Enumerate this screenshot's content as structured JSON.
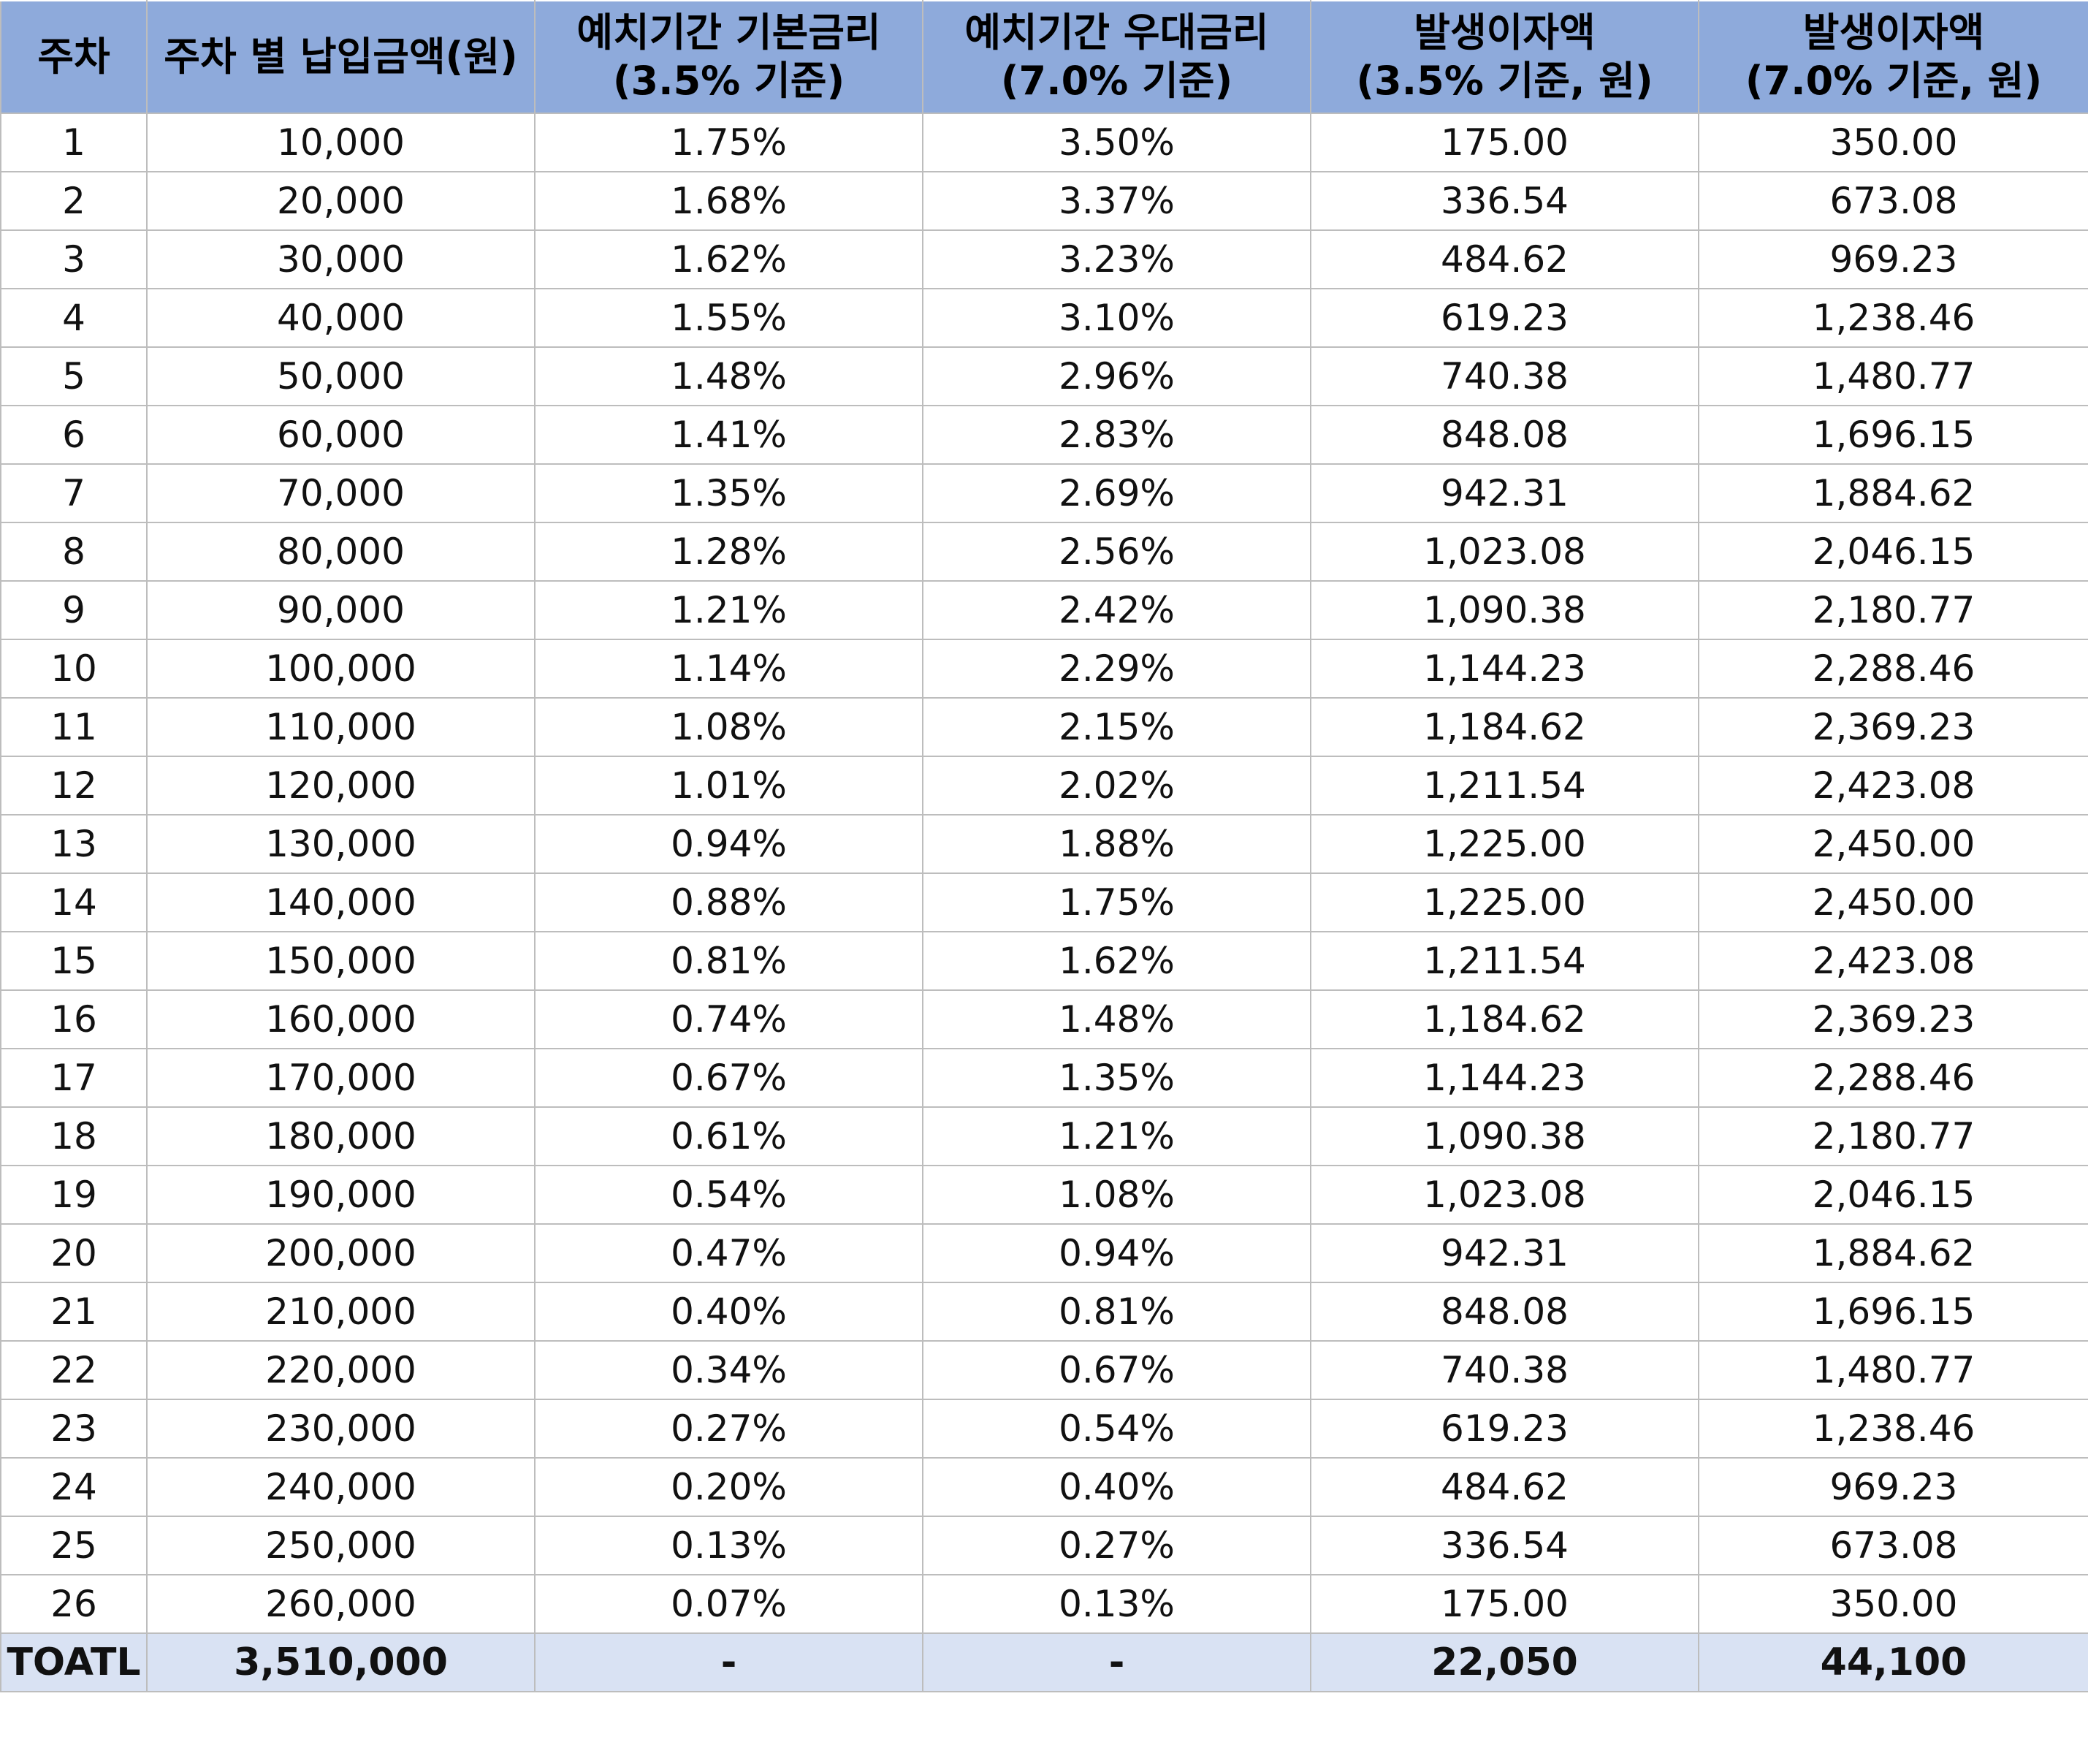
{
  "headers": {
    "week": "주차",
    "deposit": "주차 별 납입금액(원)",
    "base_rate": [
      "예치기간 기본금리",
      "(3.5% 기준)"
    ],
    "pref_rate": [
      "예치기간 우대금리",
      "(7.0% 기준)"
    ],
    "interest_base": [
      "발생이자액",
      "(3.5% 기준, 원)"
    ],
    "interest_pref": [
      "발생이자액",
      "(7.0% 기준, 원)"
    ]
  },
  "rows": [
    [
      "1",
      "10,000",
      "1.75%",
      "3.50%",
      "175.00",
      "350.00"
    ],
    [
      "2",
      "20,000",
      "1.68%",
      "3.37%",
      "336.54",
      "673.08"
    ],
    [
      "3",
      "30,000",
      "1.62%",
      "3.23%",
      "484.62",
      "969.23"
    ],
    [
      "4",
      "40,000",
      "1.55%",
      "3.10%",
      "619.23",
      "1,238.46"
    ],
    [
      "5",
      "50,000",
      "1.48%",
      "2.96%",
      "740.38",
      "1,480.77"
    ],
    [
      "6",
      "60,000",
      "1.41%",
      "2.83%",
      "848.08",
      "1,696.15"
    ],
    [
      "7",
      "70,000",
      "1.35%",
      "2.69%",
      "942.31",
      "1,884.62"
    ],
    [
      "8",
      "80,000",
      "1.28%",
      "2.56%",
      "1,023.08",
      "2,046.15"
    ],
    [
      "9",
      "90,000",
      "1.21%",
      "2.42%",
      "1,090.38",
      "2,180.77"
    ],
    [
      "10",
      "100,000",
      "1.14%",
      "2.29%",
      "1,144.23",
      "2,288.46"
    ],
    [
      "11",
      "110,000",
      "1.08%",
      "2.15%",
      "1,184.62",
      "2,369.23"
    ],
    [
      "12",
      "120,000",
      "1.01%",
      "2.02%",
      "1,211.54",
      "2,423.08"
    ],
    [
      "13",
      "130,000",
      "0.94%",
      "1.88%",
      "1,225.00",
      "2,450.00"
    ],
    [
      "14",
      "140,000",
      "0.88%",
      "1.75%",
      "1,225.00",
      "2,450.00"
    ],
    [
      "15",
      "150,000",
      "0.81%",
      "1.62%",
      "1,211.54",
      "2,423.08"
    ],
    [
      "16",
      "160,000",
      "0.74%",
      "1.48%",
      "1,184.62",
      "2,369.23"
    ],
    [
      "17",
      "170,000",
      "0.67%",
      "1.35%",
      "1,144.23",
      "2,288.46"
    ],
    [
      "18",
      "180,000",
      "0.61%",
      "1.21%",
      "1,090.38",
      "2,180.77"
    ],
    [
      "19",
      "190,000",
      "0.54%",
      "1.08%",
      "1,023.08",
      "2,046.15"
    ],
    [
      "20",
      "200,000",
      "0.47%",
      "0.94%",
      "942.31",
      "1,884.62"
    ],
    [
      "21",
      "210,000",
      "0.40%",
      "0.81%",
      "848.08",
      "1,696.15"
    ],
    [
      "22",
      "220,000",
      "0.34%",
      "0.67%",
      "740.38",
      "1,480.77"
    ],
    [
      "23",
      "230,000",
      "0.27%",
      "0.54%",
      "619.23",
      "1,238.46"
    ],
    [
      "24",
      "240,000",
      "0.20%",
      "0.40%",
      "484.62",
      "969.23"
    ],
    [
      "25",
      "250,000",
      "0.13%",
      "0.27%",
      "336.54",
      "673.08"
    ],
    [
      "26",
      "260,000",
      "0.07%",
      "0.13%",
      "175.00",
      "350.00"
    ]
  ],
  "total": {
    "label": "TOATL",
    "deposit": "3,510,000",
    "base_rate": "-",
    "pref_rate": "-",
    "interest_base": "22,050",
    "interest_pref": "44,100"
  },
  "colors": {
    "header_bg": "#8eaadb",
    "total_bg": "#d9e2f3",
    "grid": "#bdbdbd"
  }
}
